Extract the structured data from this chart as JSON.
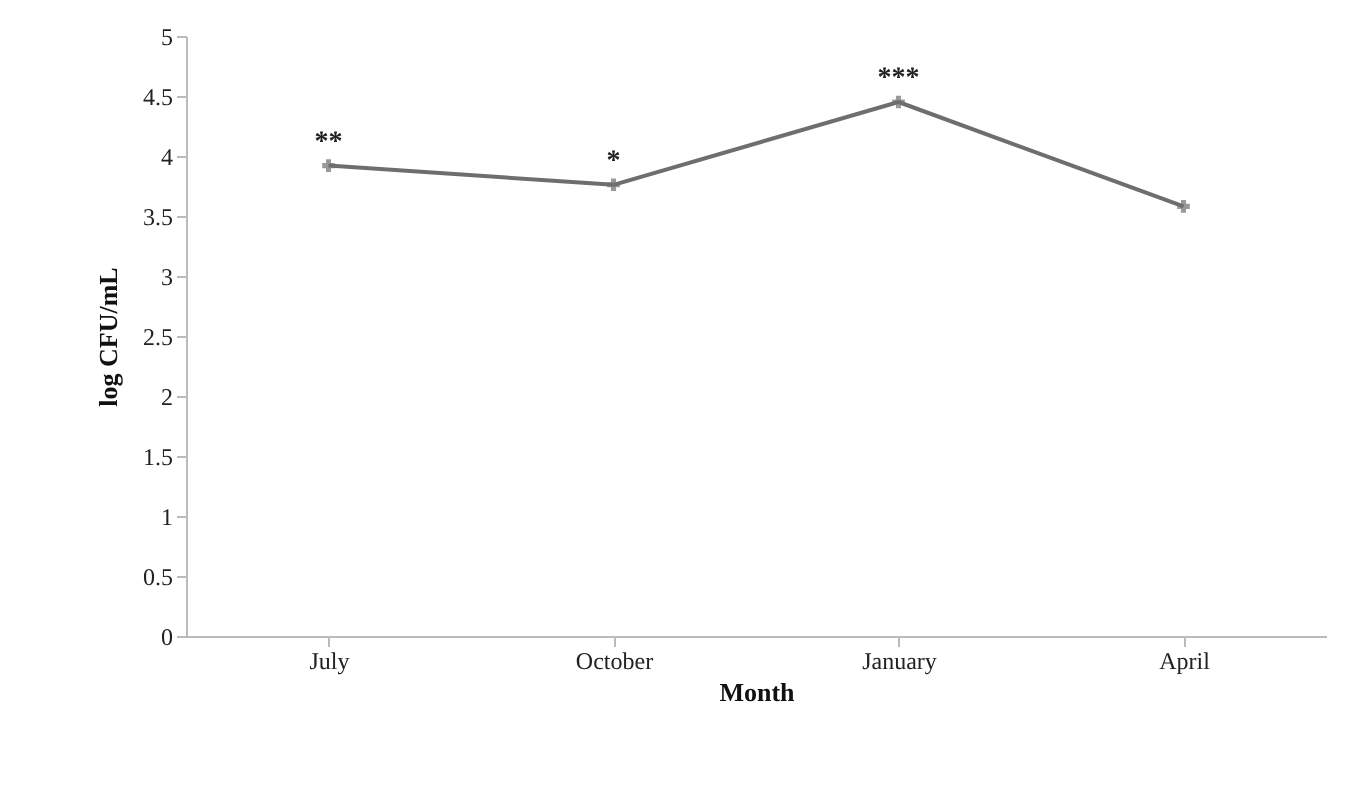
{
  "chart_data": {
    "type": "line",
    "xlabel": "Month",
    "ylabel": "log CFU/mL",
    "categories": [
      "July",
      "October",
      "January",
      "April"
    ],
    "series": [
      {
        "color": "#6e6e6e",
        "values": [
          3.92,
          3.76,
          4.45,
          3.58
        ]
      }
    ],
    "ylim": [
      0,
      5
    ],
    "yticks": [
      0,
      0.5,
      1,
      1.5,
      2,
      2.5,
      3,
      3.5,
      4,
      4.5,
      5
    ],
    "grid": false,
    "marker": "cross",
    "line_style": "solid",
    "annotations": [
      {
        "text": "**",
        "x": "July",
        "y": 3.92
      },
      {
        "text": "*",
        "x": "October",
        "y": 3.76
      },
      {
        "text": "***",
        "x": "January",
        "y": 4.45
      }
    ]
  }
}
